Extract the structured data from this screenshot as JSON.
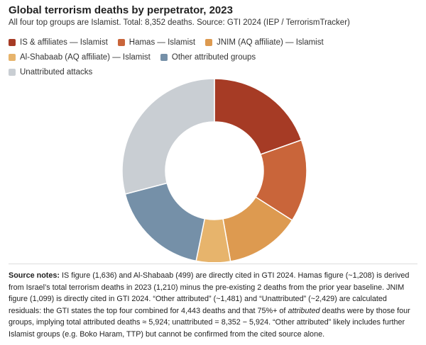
{
  "chart_data": {
    "type": "donut",
    "title": "Global terrorism deaths by perpetrator, 2023",
    "subtitle": "All four top groups are Islamist. Total: 8,352 deaths. Source: GTI 2024 (IEP / TerrorismTracker)",
    "categories": [
      "IS & affiliates — Islamist",
      "Hamas — Islamist",
      "JNIM (AQ affiliate) — Islamist",
      "Al-Shabaab (AQ affiliate) — Islamist",
      "Other attributed groups",
      "Unattributed attacks"
    ],
    "values": [
      1636,
      1208,
      1099,
      499,
      1481,
      2429
    ],
    "colors": [
      "#a63b25",
      "#c9653a",
      "#dd9a50",
      "#e7b46c",
      "#7590a8",
      "#c9ced3"
    ],
    "legend": "top"
  },
  "notes": {
    "label": "Source notes:",
    "text_before": " IS figure (1,636) and Al-Shabaab (499) are directly cited in GTI 2024. Hamas figure (~1,208) is derived from Israel’s total terrorism deaths in 2023 (1,210) minus the pre-existing 2 deaths from the prior year baseline. JNIM figure (1,099) is directly cited in GTI 2024. “Other attributed” (~1,481) and “Unattributed” (~2,429) are calculated residuals: the GTI states the top four combined for 4,443 deaths and that 75%+ of ",
    "italic": "attributed",
    "text_after": " deaths were by those four groups, implying total attributed deaths ≈ 5,924; unattributed = 8,352 − 5,924. “Other attributed” likely includes further Islamist groups (e.g. Boko Haram, TTP) but cannot be confirmed from the cited source alone."
  }
}
